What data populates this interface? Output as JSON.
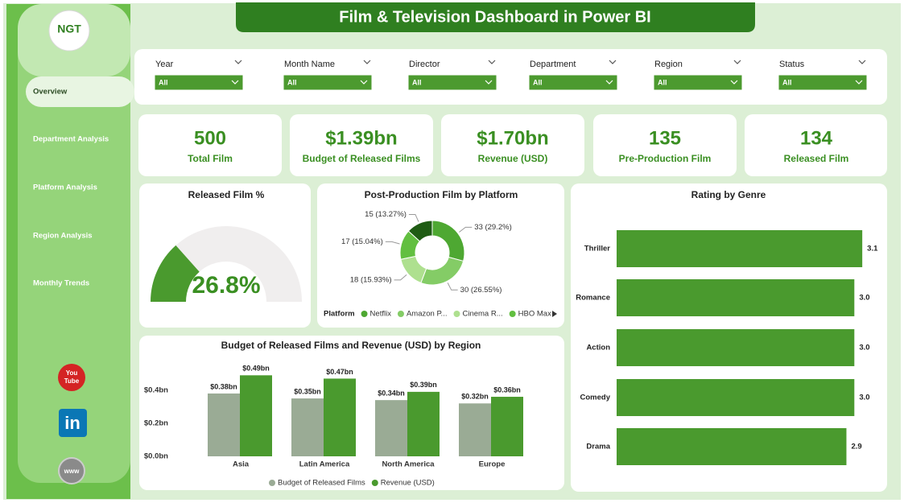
{
  "header": {
    "title": "Film & Television Dashboard in Power BI",
    "logo": "NGT"
  },
  "nav": {
    "items": [
      "Overview",
      "Department Analysis",
      "Platform Analysis",
      "Region Analysis",
      "Monthly Trends"
    ],
    "selected": 0
  },
  "social": {
    "youtube": [
      "You",
      "Tube"
    ],
    "linkedin": "in",
    "web": "www"
  },
  "filters": [
    {
      "label": "Year",
      "value": "All"
    },
    {
      "label": "Month Name",
      "value": "All"
    },
    {
      "label": "Director",
      "value": "All"
    },
    {
      "label": "Department",
      "value": "All"
    },
    {
      "label": "Region",
      "value": "All"
    },
    {
      "label": "Status",
      "value": "All"
    }
  ],
  "kpis": [
    {
      "value": "500",
      "label": "Total Film"
    },
    {
      "value": "$1.39bn",
      "label": "Budget of Released Films"
    },
    {
      "value": "$1.70bn",
      "label": "Revenue (USD)"
    },
    {
      "value": "135",
      "label": "Pre-Production Film"
    },
    {
      "value": "134",
      "label": "Released Film"
    }
  ],
  "chart_data": [
    {
      "type": "gauge",
      "title": "Released Film %",
      "values": [
        26.8
      ],
      "value_labels": [
        "26.8%"
      ],
      "ylim": [
        0,
        100
      ],
      "color": "#4a9a2e",
      "track_color": "#f0eeee"
    },
    {
      "type": "pie",
      "donut": true,
      "title": "Post-Production Film by Platform",
      "legend_title": "Platform",
      "categories": [
        "Netflix",
        "Amazon P...",
        "Cinema R...",
        "HBO Max",
        null
      ],
      "values": [
        33,
        30,
        18,
        17,
        15
      ],
      "value_labels": [
        "33 (29.2%)",
        "30 (26.55%)",
        "18 (15.93%)",
        "17 (15.04%)",
        "15 (13.27%)"
      ],
      "colors": [
        "#4ea832",
        "#84cc66",
        "#aee08f",
        "#62bf40",
        "#1f5c14"
      ]
    },
    {
      "type": "bar",
      "orientation": "vertical",
      "title": "Budget of Released Films and Revenue (USD) by Region",
      "categories": [
        "Asia",
        "Latin America",
        "North America",
        "Europe"
      ],
      "series": [
        {
          "name": "Budget of Released Films",
          "color": "#9aab95",
          "values": [
            0.38,
            0.35,
            0.34,
            0.32
          ],
          "value_labels": [
            "$0.38bn",
            "$0.35bn",
            "$0.34bn",
            "$0.32bn"
          ]
        },
        {
          "name": "Revenue (USD)",
          "color": "#4a9a2e",
          "values": [
            0.49,
            0.47,
            0.39,
            0.36
          ],
          "value_labels": [
            "$0.49bn",
            "$0.47bn",
            "$0.39bn",
            "$0.36bn"
          ]
        }
      ],
      "ylim": [
        0,
        0.55
      ],
      "yticks": [
        {
          "value": 0,
          "label": "$0.0bn"
        },
        {
          "value": 0.2,
          "label": "$0.2bn"
        },
        {
          "value": 0.4,
          "label": "$0.4bn"
        }
      ],
      "legend": "bottom"
    },
    {
      "type": "bar",
      "orientation": "horizontal",
      "title": "Rating by Genre",
      "categories": [
        "Thriller",
        "Romance",
        "Action",
        "Comedy",
        "Drama"
      ],
      "values": [
        3.1,
        3,
        3,
        3,
        2.9
      ],
      "value_labels": [
        "3.1",
        "3.0",
        "3.0",
        "3.0",
        "2.9"
      ],
      "xlim": [
        0,
        3.2
      ],
      "color": "#4a9a2e"
    }
  ]
}
